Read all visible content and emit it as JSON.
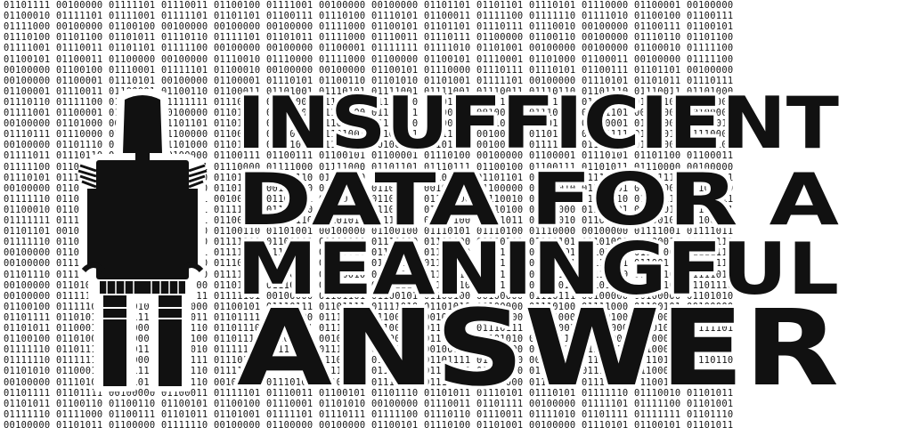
{
  "headline": {
    "line1": "INSUFFICIENT",
    "line2": "DATA FOR A",
    "line3": "MEANINGFUL",
    "line4": "ANSWER"
  },
  "background": {
    "pattern": "binary digits",
    "text_color": "#151515",
    "bg_color": "#ffffff"
  },
  "figure": {
    "icon": "robot-silhouette-icon",
    "color": "#111111"
  }
}
